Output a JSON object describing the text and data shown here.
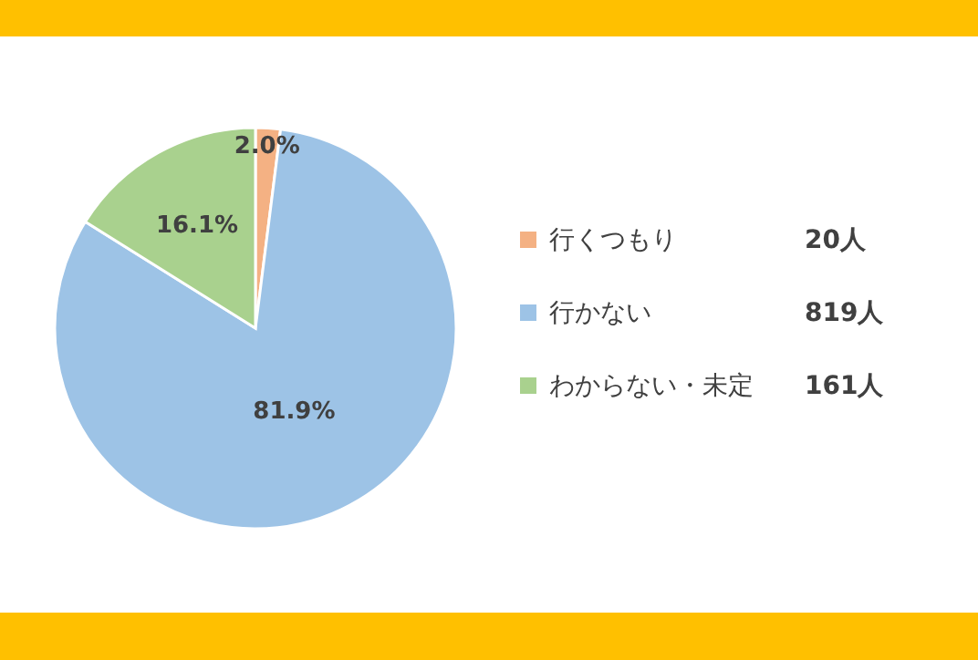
{
  "chart_data": {
    "type": "pie",
    "categories": [
      "行くつもり",
      "行かない",
      "わからない・未定"
    ],
    "values": [
      2.0,
      81.9,
      16.1
    ],
    "colors": [
      "#f4b183",
      "#9dc3e6",
      "#a9d18e"
    ],
    "value_labels": [
      "2.0%",
      "81.9%",
      "16.1%"
    ],
    "annotations": [
      "20人",
      "819人",
      "161人"
    ],
    "legend": "right"
  }
}
